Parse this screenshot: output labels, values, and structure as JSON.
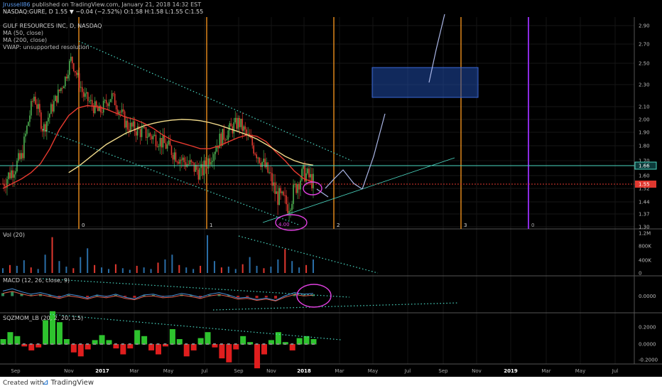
{
  "header": {
    "author": "Jrussell86",
    "published": " published on TradingView.com, January 21, 2018 14:32 EST",
    "symbol_line": "NASDAQ:GURE, D  1.55 ▼ −0.04 (−2.52%) O:1.58 H:1.58 L:1.55 C:1.55",
    "company": "GULF RESOURCES INC, D, NASDAQ",
    "ma50": "MA (50, close)",
    "ma200": "MA (200, close)",
    "vwap": "VWAP: unsupported resolution"
  },
  "footer": {
    "created_with": "Created with",
    "brand_icon": "tradingview-logo-icon",
    "brand": "TradingView"
  },
  "colors": {
    "up": "#4caf50",
    "down": "#e0382f",
    "ma50": "#e83a2f",
    "ma200": "#f0d98a",
    "trend": "#4ad7c2",
    "arrow": "#aab6e6",
    "circle": "#e040e0",
    "orange": "#ff9a1e",
    "purple": "#8a2be2",
    "box": "#1f4aa8"
  },
  "chart_data": [
    {
      "type": "line",
      "name": "price",
      "title": "GULF RESOURCES INC, D, NASDAQ",
      "y_ticks": [
        "2.90",
        "2.70",
        "2.50",
        "2.30",
        "2.10",
        "2.00",
        "1.90",
        "1.80",
        "1.70",
        "1.60",
        "1.52",
        "1.44",
        "1.37",
        "1.30"
      ],
      "price_labels": [
        {
          "value": "1.66",
          "color": "#4ad7c2"
        },
        {
          "value": "1.55",
          "color": "#e0382f"
        }
      ],
      "x_ticks": [
        "Sep",
        "Nov",
        "2017",
        "Mar",
        "May",
        "Jul",
        "Sep",
        "Nov",
        "2018",
        "Mar",
        "May",
        "Jul",
        "Sep",
        "Nov",
        "2019",
        "Mar",
        "May",
        "Jul"
      ],
      "cycle_labels": [
        "0",
        "1",
        "2",
        "3",
        "0"
      ],
      "bottom_label": "4.00",
      "series": [
        {
          "name": "MA (50, close)",
          "values": [
            1.52,
            1.55,
            1.58,
            1.62,
            1.68,
            1.78,
            1.92,
            2.03,
            2.09,
            2.11,
            2.1,
            2.08,
            2.05,
            2.02,
            2.0,
            1.97,
            1.93,
            1.88,
            1.84,
            1.82,
            1.8,
            1.78,
            1.78,
            1.8,
            1.83,
            1.86,
            1.88,
            1.87,
            1.83,
            1.76,
            1.7,
            1.63,
            1.58,
            1.56
          ]
        },
        {
          "name": "MA (200, close)",
          "values": [
            null,
            null,
            null,
            null,
            null,
            null,
            null,
            1.62,
            1.66,
            1.71,
            1.76,
            1.81,
            1.85,
            1.89,
            1.92,
            1.95,
            1.97,
            1.985,
            1.995,
            2.0,
            1.998,
            1.99,
            1.975,
            1.955,
            1.93,
            1.905,
            1.88,
            1.85,
            1.81,
            1.77,
            1.73,
            1.7,
            1.68,
            1.67
          ]
        }
      ]
    },
    {
      "type": "bar",
      "name": "Vol (20)",
      "y_ticks": [
        "1.2M",
        "800K",
        "400K",
        "0"
      ],
      "values": [
        0.12,
        0.2,
        0.18,
        0.32,
        0.14,
        0.1,
        0.46,
        0.9,
        0.3,
        0.16,
        0.12,
        0.4,
        0.62,
        0.2,
        0.14,
        0.1,
        0.22,
        0.12,
        0.08,
        0.18,
        0.14,
        0.1,
        0.26,
        0.34,
        0.46,
        0.2,
        0.14,
        0.1,
        0.18,
        0.95,
        0.3,
        0.14,
        0.16,
        0.1,
        0.22,
        0.4,
        0.18,
        0.12,
        0.16,
        0.34,
        0.6,
        0.3,
        0.14,
        0.2,
        0.34
      ]
    },
    {
      "type": "line",
      "name": "MACD (12, 26, close, 9)",
      "y_ticks": [
        "0.0000"
      ],
      "values": [
        0.06,
        0.09,
        0.05,
        0.02,
        0.04,
        0.01,
        -0.02,
        0.02,
        0.0,
        -0.03,
        0.01,
        -0.01,
        0.02,
        -0.02,
        -0.04,
        0.01,
        0.02,
        -0.01,
        0.0,
        0.03,
        0.01,
        -0.02,
        0.02,
        0.04,
        0.01,
        -0.03,
        -0.02,
        -0.05,
        -0.03,
        -0.06,
        0.0,
        0.04,
        0.02,
        0.03
      ]
    },
    {
      "type": "bar",
      "name": "SQZMOM_LB (20, 2, 20, 1.5)",
      "y_ticks": [
        "0.2000",
        "0.0000",
        "-0.2000"
      ],
      "values": [
        0.05,
        0.12,
        0.08,
        -0.02,
        -0.06,
        -0.03,
        0.24,
        0.33,
        0.22,
        0.05,
        -0.08,
        -0.12,
        -0.05,
        0.04,
        0.09,
        0.04,
        -0.04,
        -0.1,
        -0.04,
        0.14,
        0.08,
        -0.06,
        -0.1,
        -0.02,
        0.15,
        0.05,
        -0.12,
        -0.06,
        0.06,
        0.12,
        -0.03,
        -0.14,
        -0.18,
        -0.05,
        0.08,
        0.02,
        -0.24,
        -0.1,
        0.04,
        0.12,
        0.02,
        -0.06,
        0.06,
        0.08,
        0.05
      ]
    }
  ]
}
